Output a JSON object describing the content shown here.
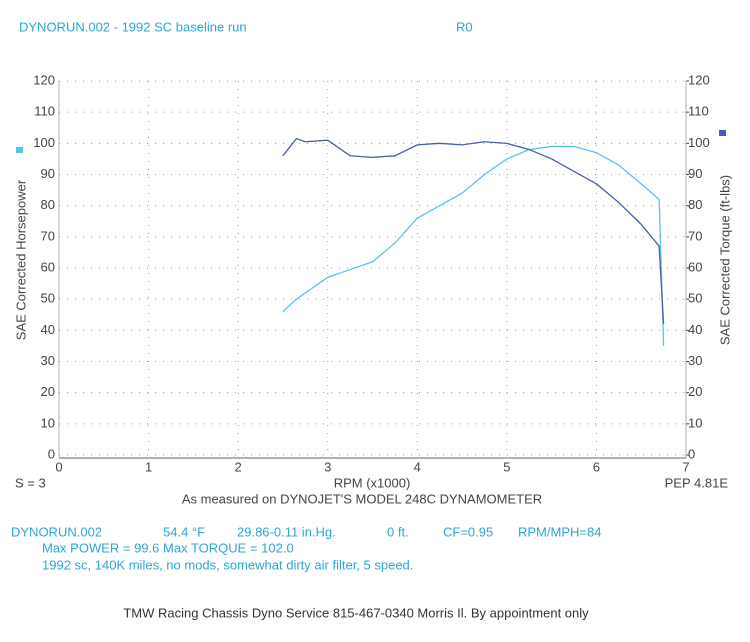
{
  "chart_data": {
    "type": "line",
    "title": "DYNORUN.002 - 1992 SC   baseline run",
    "run_code": "R0",
    "xlabel": "RPM (x1000)",
    "ylabel": "SAE Corrected Horsepower",
    "y2label": "SAE Corrected Torque (ft-lbs)",
    "left_note": "S = 3",
    "right_note": "PEP 4.81E",
    "subtitle": "As measured on DYNOJET'S MODEL 248C DYNAMOMETER",
    "xlim": [
      0,
      7
    ],
    "xticks": [
      0,
      1,
      2,
      3,
      4,
      5,
      6,
      7
    ],
    "ylim": [
      0,
      120
    ],
    "yticks": [
      0,
      10,
      20,
      30,
      40,
      50,
      60,
      70,
      80,
      90,
      100,
      110,
      120
    ],
    "y2lim": [
      0,
      120
    ],
    "y2ticks": [
      0,
      10,
      20,
      30,
      40,
      50,
      60,
      70,
      80,
      90,
      100,
      110,
      120
    ],
    "grid": true,
    "x": [
      2.5,
      2.65,
      2.75,
      3.0,
      3.25,
      3.5,
      3.75,
      4.0,
      4.25,
      4.5,
      4.75,
      5.0,
      5.25,
      5.5,
      5.75,
      6.0,
      6.25,
      6.5,
      6.7,
      6.75
    ],
    "series": [
      {
        "name": "Horsepower",
        "color": "#5bc3ea",
        "values": [
          46,
          50,
          52,
          57,
          59.5,
          62,
          68,
          76,
          80,
          84,
          90,
          95,
          98,
          99,
          99,
          97,
          93,
          87,
          82,
          35
        ]
      },
      {
        "name": "Torque",
        "color": "#4a5ea8",
        "axis": "y2",
        "values": [
          96,
          101.5,
          100.5,
          101,
          96,
          95.5,
          96,
          99.5,
          100,
          99.5,
          100.5,
          100,
          98,
          95,
          91,
          87,
          81,
          74,
          67,
          42
        ]
      }
    ]
  },
  "info": {
    "line1": [
      "DYNORUN.002",
      "54.4 °F",
      "29.86-0.11 in.Hg.",
      "0 ft.",
      "CF=0.95",
      "RPM/MPH=84"
    ],
    "line2": "Max POWER = 99.6  Max TORQUE = 102.0",
    "line3": "1992 sc,  140K miles, no mods, somewhat dirty air filter, 5 speed.",
    "footer": "TMW Racing Chassis Dyno Service 815-467-0340 Morris Il. By appointment only"
  }
}
